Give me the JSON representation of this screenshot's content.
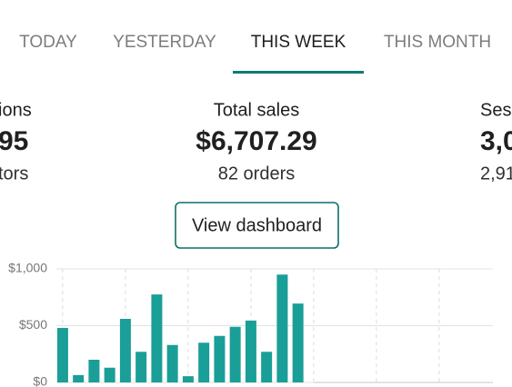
{
  "tabs": [
    {
      "label": "TODAY",
      "active": false
    },
    {
      "label": "YESTERDAY",
      "active": false
    },
    {
      "label": "THIS WEEK",
      "active": true
    },
    {
      "label": "THIS MONTH",
      "active": false
    }
  ],
  "stats": [
    {
      "label": "ions",
      "value": "95",
      "sub": "tors"
    },
    {
      "label": "Total sales",
      "value": "$6,707.29",
      "sub": "82 orders"
    },
    {
      "label": "Sess",
      "value": "3,0",
      "sub": "2,91"
    }
  ],
  "button": "View dashboard",
  "chart_data": {
    "type": "bar",
    "values": [
      480,
      65,
      200,
      130,
      560,
      270,
      775,
      330,
      55,
      350,
      410,
      490,
      545,
      270,
      950,
      695,
      null,
      null,
      null,
      null,
      null,
      null,
      null,
      null,
      null,
      null,
      null,
      null
    ],
    "color": "#1a9e98",
    "ylim": [
      0,
      1000
    ],
    "yticks": [
      {
        "value": 0,
        "label": "$0"
      },
      {
        "value": 500,
        "label": "$500"
      },
      {
        "value": 1000,
        "label": "$1,000"
      }
    ],
    "grid": true
  }
}
